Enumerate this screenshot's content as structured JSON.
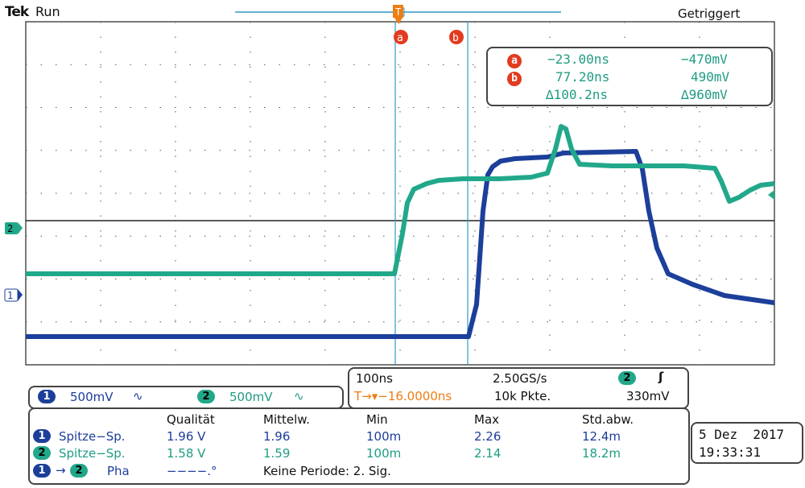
{
  "header": {
    "brand": "Tek",
    "state": "Run",
    "trigger_status": "Getriggert"
  },
  "markers": {
    "trigger": "T",
    "cursor_a": "a",
    "cursor_b": "b",
    "ch2_ground": "2",
    "ch1_ground": "1"
  },
  "cursor_readout": {
    "a_time": "−23.00ns",
    "a_volt": "−470mV",
    "b_time": "77.20ns",
    "b_volt": "490mV",
    "delta_time": "∆100.2ns",
    "delta_volt": "∆960mV"
  },
  "channels": {
    "ch1": {
      "label": "1",
      "scale": "500mV",
      "coupling": "∿"
    },
    "ch2": {
      "label": "2",
      "scale": "500mV",
      "coupling": "∿"
    }
  },
  "horizontal": {
    "time_div": "100ns",
    "sample_rate": "2.50GS/s",
    "trigger_pos": "T→▾−16.0000ns",
    "record_length": "10k Pkte."
  },
  "trigger": {
    "source": "2",
    "slope": "ʃ",
    "level": "330mV"
  },
  "measurements": {
    "headers": [
      "Qualität",
      "Mittelw.",
      "Min",
      "Max",
      "Std.abw."
    ],
    "rows": [
      {
        "ch": "1",
        "name": "Spitze−Sp.",
        "values": [
          "1.96 V",
          "1.96",
          "100m",
          "2.26",
          "12.4m"
        ]
      },
      {
        "ch": "2",
        "name": "Spitze−Sp.",
        "values": [
          "1.58 V",
          "1.59",
          "100m",
          "2.14",
          "18.2m"
        ]
      }
    ],
    "phase": {
      "from": "1",
      "to": "2",
      "name": "Pha",
      "value": "−−−−.°",
      "note": "Keine Periode: 2. Sig."
    }
  },
  "datetime": {
    "date": "5 Dez  2017",
    "time": "19:33:31"
  },
  "colors": {
    "ch1": "#1c3f9a",
    "ch2": "#21a88a",
    "cursor": "#e23b20",
    "trigger": "#ee7d12",
    "cursor_line": "#2e9bc4"
  }
}
